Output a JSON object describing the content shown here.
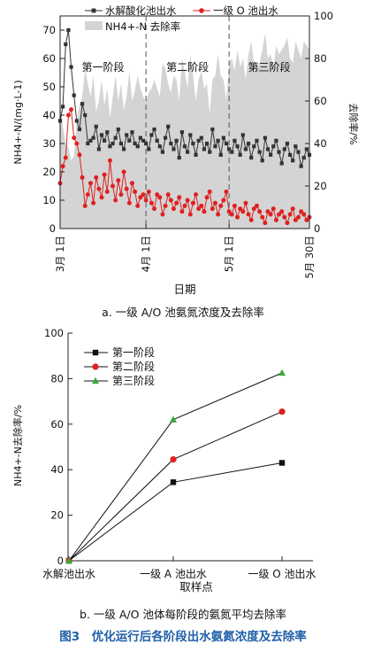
{
  "figure_title": "图3　优化运行后各阶段出水氨氮浓度及去除率",
  "chart_data": [
    {
      "type": "line",
      "caption": "a. 一级 A/O 池氨氮浓度及去除率",
      "xlabel": "日期",
      "x_ticks": [
        "3月 1日",
        "4月 1日",
        "5月 1日",
        "5月 30日"
      ],
      "ylabel_left": "NH4+-N/(mg·L-1)",
      "ylabel_right": "去除率/%",
      "ylim_left": [
        0,
        75
      ],
      "yticks_left": [
        0,
        10,
        20,
        30,
        40,
        50,
        60,
        70
      ],
      "ylim_right": [
        0,
        100
      ],
      "yticks_right": [
        0,
        20,
        40,
        60,
        80,
        100
      ],
      "phases": [
        "第一阶段",
        "第二阶段",
        "第三阶段"
      ],
      "phase_boundaries_day": [
        31,
        61
      ],
      "total_days": 91,
      "legend": {
        "placement": "top",
        "items": [
          "水解酸化池出水",
          "一级 O 池出水",
          "NH4+-N 去除率"
        ]
      },
      "series": [
        {
          "name": "水解酸化池出水",
          "color": "#333333",
          "marker": "square",
          "values": [
            38,
            43,
            65,
            70,
            57,
            47,
            38,
            35,
            44,
            40,
            30,
            31,
            32,
            36,
            28,
            33,
            31,
            34,
            29,
            30,
            32,
            35,
            30,
            28,
            33,
            31,
            34,
            30,
            29,
            32,
            31,
            30,
            28,
            33,
            35,
            31,
            29,
            27,
            32,
            36,
            30,
            28,
            31,
            25,
            34,
            29,
            27,
            33,
            30,
            26,
            31,
            32,
            28,
            30,
            27,
            35,
            29,
            31,
            26,
            32,
            30,
            28,
            27,
            31,
            29,
            26,
            33,
            28,
            30,
            25,
            29,
            31,
            27,
            24,
            32,
            28,
            26,
            29,
            31,
            27,
            23,
            28,
            30,
            26,
            24,
            29,
            27,
            22,
            25,
            28,
            26
          ]
        },
        {
          "name": "一级 O 池出水",
          "color": "#e02020",
          "marker": "circle",
          "values": [
            16,
            22,
            25,
            40,
            42,
            32,
            30,
            26,
            18,
            8,
            12,
            16,
            9,
            18,
            14,
            11,
            19,
            13,
            24,
            15,
            10,
            17,
            12,
            20,
            14,
            9,
            16,
            13,
            8,
            11,
            12,
            10,
            13,
            9,
            7,
            12,
            11,
            5,
            8,
            12,
            10,
            7,
            9,
            11,
            6,
            8,
            10,
            5,
            9,
            12,
            7,
            8,
            6,
            11,
            13,
            7,
            9,
            5,
            8,
            10,
            13,
            6,
            5,
            8,
            4,
            7,
            6,
            9,
            5,
            3,
            7,
            8,
            6,
            4,
            2,
            6,
            5,
            7,
            3,
            5,
            6,
            4,
            2,
            5,
            7,
            3,
            4,
            6,
            5,
            3,
            4
          ]
        },
        {
          "name": "NH4+-N 去除率",
          "color": "#d4d4d4",
          "type": "area",
          "values": [
            60,
            48,
            40,
            38,
            32,
            34,
            50,
            58,
            62,
            75,
            68,
            62,
            72,
            55,
            60,
            70,
            58,
            66,
            52,
            62,
            72,
            60,
            68,
            56,
            62,
            74,
            60,
            65,
            72,
            66,
            62,
            60,
            64,
            66,
            70,
            66,
            62,
            78,
            75,
            68,
            64,
            72,
            70,
            60,
            80,
            74,
            66,
            82,
            72,
            60,
            70,
            74,
            66,
            68,
            54,
            70,
            72,
            82,
            72,
            70,
            60,
            78,
            80,
            74,
            84,
            76,
            80,
            70,
            82,
            88,
            78,
            76,
            78,
            84,
            92,
            80,
            82,
            76,
            86,
            82,
            84,
            86,
            90,
            80,
            78,
            88,
            84,
            80,
            88,
            86,
            84
          ]
        }
      ]
    },
    {
      "type": "line",
      "caption": "b. 一级 A/O 池体每阶段的氨氮平均去除率",
      "xlabel": "取样点",
      "ylabel": "NH4+-N去除率/%",
      "categories": [
        "水解池出水",
        "一级 A 池出水",
        "一级 O 池出水"
      ],
      "ylim": [
        0,
        100
      ],
      "yticks": [
        0,
        20,
        40,
        60,
        80,
        100
      ],
      "legend": {
        "placement": "top-left"
      },
      "series": [
        {
          "name": "第一阶段",
          "color": "#111111",
          "marker": "square",
          "values": [
            0,
            34.5,
            43
          ]
        },
        {
          "name": "第二阶段",
          "color": "#e02020",
          "marker": "circle",
          "values": [
            0,
            44.5,
            65.5
          ]
        },
        {
          "name": "第三阶段",
          "color": "#3aa83a",
          "marker": "triangle",
          "values": [
            0,
            62,
            82.5
          ]
        }
      ]
    }
  ]
}
